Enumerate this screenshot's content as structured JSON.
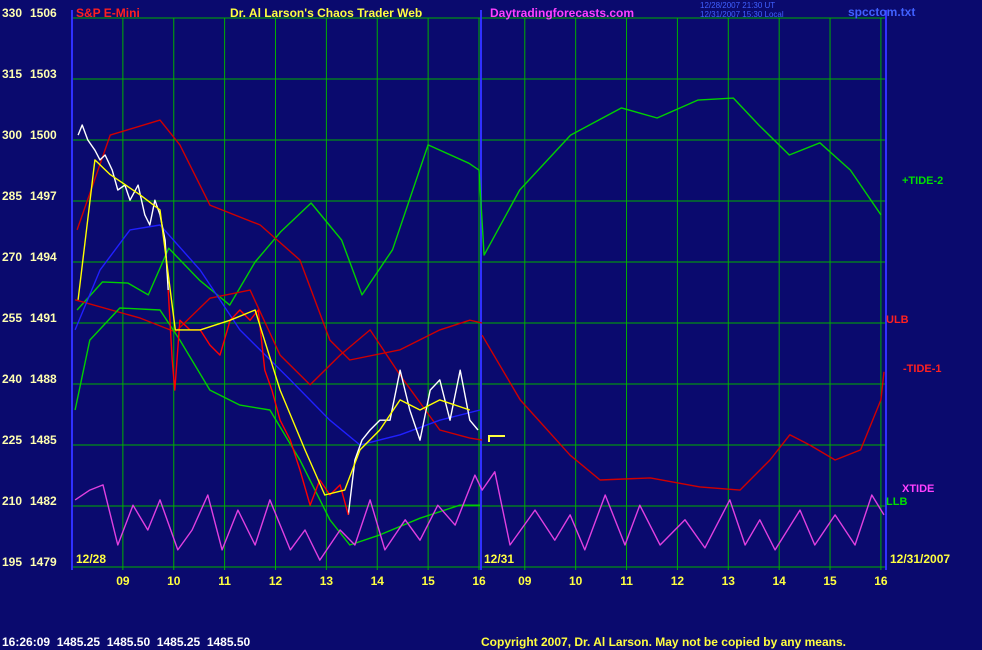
{
  "chart_data": {
    "type": "line",
    "symbol": "S&P E-Mini",
    "title": "Dr. Al Larson's Chaos Trader Web",
    "website": "Daytradingforecasts.com",
    "timestamps": [
      "12/28/2007 21:30 UT",
      "12/31/2007 15:30 Local"
    ],
    "file": "spcctom.txt",
    "start_date": "12/28",
    "day2_date": "12/31",
    "end_date": "12/31/2007",
    "annotations": [
      "+TIDE-2",
      "ULB",
      "-TIDE-1",
      "XTIDE",
      "LLB"
    ],
    "status": "16:26:09  1485.25  1485.50  1485.25  1485.50",
    "copyright": "Copyright 2007, Dr. Al Larson. May not be copied by any means.",
    "background": "#0a0a6e",
    "grid": true,
    "grid_color": "#00b000",
    "xlim": [
      8,
      24
    ],
    "xticks": [
      {
        "value": 9,
        "label": "09"
      },
      10,
      11,
      12,
      13,
      14,
      15,
      16,
      {
        "value": 16.9,
        "label": "09"
      },
      {
        "value": 17.9,
        "label": "10"
      },
      {
        "value": 18.9,
        "label": "11"
      },
      {
        "value": 19.9,
        "label": "12"
      },
      {
        "value": 20.9,
        "label": "13"
      },
      {
        "value": 21.9,
        "label": "14"
      },
      {
        "value": 22.9,
        "label": "15"
      },
      {
        "value": 23.9,
        "label": "16"
      }
    ],
    "ylim": [
      195,
      330
    ],
    "yticks": [
      195,
      210,
      225,
      240,
      255,
      270,
      285,
      300,
      315,
      330
    ],
    "y2lim": [
      1479,
      1506
    ],
    "y2ticks": [
      1479,
      1482,
      1485,
      1488,
      1491,
      1494,
      1497,
      1500,
      1503,
      1506
    ],
    "series": [
      {
        "color": "#00d000",
        "x": [
          8.1,
          8.6,
          9.1,
          9.5,
          9.9,
          10.5,
          11.1,
          11.6,
          12.1,
          12.7,
          13.3,
          13.7,
          14.3,
          15.0,
          15.8,
          16.0,
          16.1,
          16.8,
          17.8,
          18.8,
          19.5,
          20.3,
          21.0,
          21.5,
          22.1,
          22.7,
          23.3,
          23.9
        ],
        "values": [
          258.2,
          265.1,
          264.8,
          261.9,
          273.4,
          265.6,
          259.4,
          270.0,
          277.4,
          284.5,
          275.4,
          261.9,
          273.0,
          298.8,
          294.3,
          292.6,
          271.7,
          287.7,
          301.2,
          307.9,
          305.4,
          309.8,
          310.3,
          303.7,
          296.3,
          299.3,
          292.6,
          281.6
        ]
      },
      {
        "color": "#d00000",
        "x": [
          8.1,
          8.75,
          9.73,
          10.12,
          10.71,
          11.7,
          12.48,
          13.07,
          13.46,
          14.45,
          15.23,
          15.82,
          16.06
        ],
        "values": [
          277.9,
          301.2,
          304.9,
          298.8,
          284.0,
          279.1,
          270.5,
          250.8,
          245.9,
          248.4,
          253.3,
          255.7,
          255.0
        ]
      },
      {
        "color": "#d00000",
        "x": [
          16.06,
          16.81,
          17.79,
          18.38,
          19.37,
          20.34,
          21.13,
          21.72,
          22.11,
          22.5,
          23.0,
          23.5,
          23.9,
          23.96
        ],
        "values": [
          252.0,
          236.1,
          222.5,
          216.4,
          216.9,
          214.7,
          213.9,
          221.3,
          227.5,
          225.0,
          221.3,
          223.8,
          236.1,
          243.0
        ]
      },
      {
        "color": "#d00000",
        "x": [
          8.06,
          9.34,
          10.03,
          10.71,
          11.5,
          12.09,
          12.68,
          13.27,
          13.86,
          14.45,
          15.23,
          15.82,
          16.06
        ],
        "values": [
          260.7,
          256.2,
          252.8,
          261.1,
          263.1,
          247.1,
          239.8,
          247.1,
          253.3,
          242.2,
          228.7,
          226.7,
          226.2
        ]
      },
      {
        "color": "#00d000",
        "x": [
          8.06,
          8.35,
          8.94,
          9.73,
          10.12,
          10.71,
          11.3,
          11.89,
          12.48,
          13.07,
          13.46,
          14.05,
          14.84,
          15.62,
          16.02
        ],
        "values": [
          233.6,
          250.8,
          258.7,
          258.2,
          250.8,
          238.5,
          234.8,
          233.6,
          221.3,
          206.6,
          200.4,
          202.9,
          207.0,
          210.2,
          210.2
        ]
      },
      {
        "color": "#2020ff",
        "x": [
          8.06,
          8.55,
          9.14,
          9.73,
          10.52,
          11.3,
          12.29,
          13.07,
          13.66,
          14.45,
          15.23,
          16.02
        ],
        "values": [
          253.3,
          268.0,
          277.9,
          279.1,
          268.0,
          253.3,
          241.0,
          231.1,
          225.0,
          227.5,
          231.1,
          233.6
        ]
      },
      {
        "color": "#e040e0",
        "x": [
          8.06,
          8.35,
          8.61,
          8.9,
          9.2,
          9.49,
          9.73,
          10.08,
          10.36,
          10.67,
          10.95,
          11.26,
          11.6,
          11.89,
          12.29,
          12.58,
          12.87,
          13.27,
          13.56,
          13.86,
          14.15,
          14.55,
          14.84,
          15.19,
          15.53,
          15.92,
          16.06,
          16.31,
          16.61,
          17.1,
          17.49,
          17.79,
          18.08,
          18.48,
          18.87,
          19.16,
          19.56,
          20.05,
          20.44,
          20.93,
          21.23,
          21.52,
          21.82,
          22.31,
          22.6,
          23.0,
          23.39,
          23.72,
          23.96
        ],
        "values": [
          211.5,
          213.9,
          215.2,
          200.4,
          210.2,
          204.1,
          211.5,
          199.2,
          204.1,
          212.7,
          199.2,
          209.0,
          200.4,
          211.5,
          199.2,
          204.1,
          196.7,
          204.1,
          200.4,
          211.5,
          199.2,
          206.6,
          201.6,
          210.2,
          205.3,
          217.6,
          213.9,
          218.4,
          200.4,
          209.0,
          201.6,
          207.8,
          199.2,
          212.7,
          200.4,
          210.2,
          200.4,
          206.6,
          199.7,
          211.5,
          200.4,
          206.6,
          199.2,
          209.0,
          200.4,
          207.8,
          200.4,
          212.7,
          207.8
        ]
      },
      {
        "color": "#ffffff",
        "x": [
          8.12,
          8.2,
          8.31,
          8.45,
          8.55,
          8.65,
          8.79,
          8.9,
          9.04,
          9.14,
          9.3,
          9.43,
          9.53,
          9.63,
          9.73,
          9.83,
          9.89,
          9.97,
          10.02,
          10.12,
          10.32,
          10.52,
          10.71,
          10.91,
          11.11,
          11.3,
          11.5,
          11.66,
          11.79,
          11.93,
          12.09,
          12.29,
          12.48,
          12.68,
          12.87,
          13.07,
          13.27,
          13.43,
          13.56,
          13.7,
          13.86,
          14.05,
          14.25,
          14.45,
          14.64,
          14.84,
          15.04,
          15.23,
          15.43,
          15.63,
          15.82,
          15.98
        ],
        "values": [
          301.2,
          303.7,
          300.0,
          297.5,
          295.1,
          296.3,
          292.6,
          287.7,
          288.9,
          285.2,
          288.9,
          281.6,
          279.1,
          285.2,
          281.6,
          275.4,
          263.1,
          null,
          null,
          null,
          null,
          null,
          null,
          null,
          null,
          null,
          null,
          null,
          null,
          null,
          null,
          null,
          null,
          null,
          null,
          null,
          null,
          207.8,
          221.3,
          226.2,
          228.7,
          231.1,
          231.1,
          243.4,
          233.6,
          226.2,
          238.5,
          241.0,
          231.1,
          243.4,
          231.1,
          228.7
        ]
      },
      {
        "color": "#ff0000",
        "x": [
          8.12,
          8.2,
          8.31,
          8.45,
          8.55,
          8.65,
          8.79,
          8.9,
          9.04,
          9.14,
          9.3,
          9.43,
          9.53,
          9.63,
          9.73,
          9.83,
          9.89,
          9.97,
          10.02,
          10.12,
          10.32,
          10.52,
          10.71,
          10.91,
          11.11,
          11.3,
          11.5,
          11.66,
          11.79,
          11.93,
          12.09,
          12.29,
          12.48,
          12.68,
          12.87,
          13.07,
          13.27,
          13.43,
          13.56,
          13.7,
          13.86,
          14.05,
          14.25,
          14.45,
          14.64,
          14.84,
          15.04,
          15.23,
          15.43,
          15.63,
          15.82,
          15.98
        ],
        "values": [
          null,
          null,
          null,
          null,
          null,
          null,
          null,
          null,
          null,
          null,
          null,
          null,
          null,
          null,
          null,
          null,
          263.1,
          245.9,
          238.5,
          255.7,
          253.3,
          253.3,
          249.6,
          247.1,
          255.7,
          258.2,
          255.7,
          258.2,
          243.4,
          238.5,
          231.1,
          226.2,
          218.9,
          210.2,
          216.4,
          212.7,
          215.2,
          207.8,
          null,
          null,
          null,
          null,
          null,
          null,
          null,
          null,
          null,
          null,
          null,
          null,
          null,
          null
        ]
      },
      {
        "color": "#ffff00",
        "x": [
          8.12,
          8.45,
          8.75,
          9.34,
          9.73,
          10.03,
          10.52,
          11.11,
          11.6,
          12.09,
          12.58,
          12.97,
          13.36,
          13.66,
          14.05,
          14.45,
          14.84,
          15.23,
          15.82
        ],
        "values": [
          260.7,
          295.1,
          291.5,
          286.5,
          282.8,
          253.3,
          253.3,
          255.7,
          258.2,
          238.5,
          223.8,
          212.7,
          213.9,
          223.8,
          228.7,
          236.1,
          233.6,
          236.1,
          233.6
        ]
      }
    ]
  }
}
